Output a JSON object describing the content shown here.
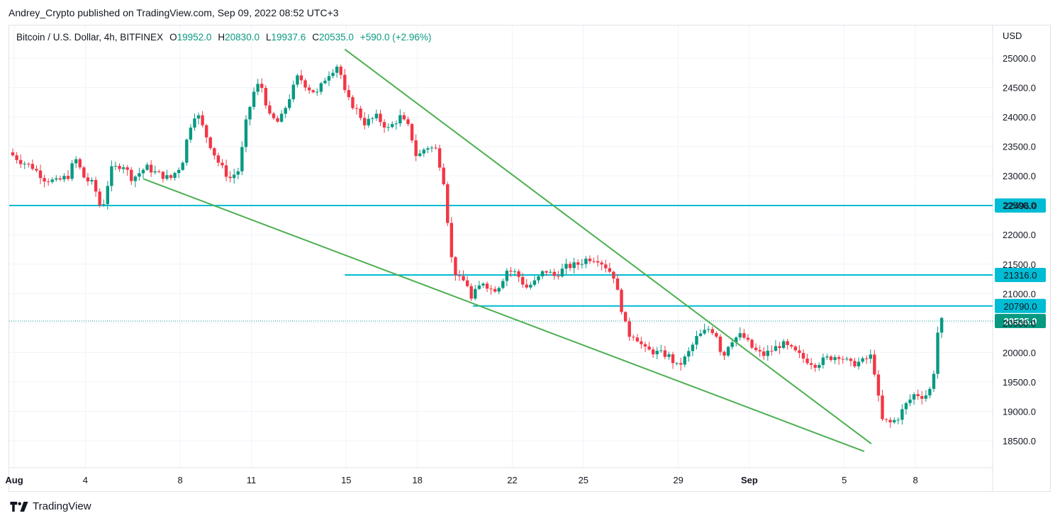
{
  "header": {
    "published": "Andrey_Crypto published on TradingView.com, Sep 09, 2022 08:52 UTC+3"
  },
  "legend": {
    "symbol": "Bitcoin / U.S. Dollar, 4h, BITFINEX",
    "open_label": "O",
    "open": "19952.0",
    "high_label": "H",
    "high": "20830.0",
    "low_label": "L",
    "low": "19937.6",
    "close_label": "C",
    "close": "20535.0",
    "change": "+590.0 (+2.96%)"
  },
  "footer": {
    "brand": "TradingView"
  },
  "colors": {
    "up": "#089981",
    "down": "#f23645",
    "hline": "#00bcd4",
    "trend": "#4caf50",
    "grid": "#f0f3fa",
    "text": "#131722"
  },
  "chart_data": {
    "type": "candlestick",
    "title": "Bitcoin / U.S. Dollar, 4h, BITFINEX",
    "currency": "USD",
    "ylim": [
      18200,
      25400
    ],
    "y_ticks": [
      "18500.0",
      "19000.0",
      "19500.0",
      "20000.0",
      "20500.0",
      "21000.0",
      "21500.0",
      "22000.0",
      "22500.0",
      "23000.0",
      "23500.0",
      "24000.0",
      "24500.0",
      "25000.0"
    ],
    "x_ticks": [
      {
        "label": "Aug",
        "day": 0
      },
      {
        "label": "4",
        "day": 3
      },
      {
        "label": "8",
        "day": 7
      },
      {
        "label": "11",
        "day": 10
      },
      {
        "label": "15",
        "day": 14
      },
      {
        "label": "18",
        "day": 17
      },
      {
        "label": "22",
        "day": 21
      },
      {
        "label": "25",
        "day": 24
      },
      {
        "label": "29",
        "day": 28
      },
      {
        "label": "Sep",
        "day": 31
      },
      {
        "label": "5",
        "day": 35
      },
      {
        "label": "8",
        "day": 38
      }
    ],
    "price_path": [
      [
        0.0,
        23400
      ],
      [
        0.5,
        23250
      ],
      [
        1.0,
        23150
      ],
      [
        1.5,
        22950
      ],
      [
        2.0,
        22900
      ],
      [
        2.5,
        23000
      ],
      [
        2.8,
        23300
      ],
      [
        3.2,
        22950
      ],
      [
        3.6,
        22850
      ],
      [
        3.8,
        22500
      ],
      [
        4.0,
        22550
      ],
      [
        4.3,
        23100
      ],
      [
        4.8,
        23200
      ],
      [
        5.2,
        22950
      ],
      [
        5.8,
        23150
      ],
      [
        6.2,
        23050
      ],
      [
        6.8,
        22950
      ],
      [
        7.3,
        23200
      ],
      [
        7.6,
        23800
      ],
      [
        7.9,
        24100
      ],
      [
        8.3,
        23700
      ],
      [
        8.8,
        23250
      ],
      [
        9.3,
        22950
      ],
      [
        9.7,
        23100
      ],
      [
        10.0,
        23900
      ],
      [
        10.3,
        24400
      ],
      [
        10.6,
        24600
      ],
      [
        11.0,
        24000
      ],
      [
        11.4,
        23900
      ],
      [
        11.8,
        24300
      ],
      [
        12.2,
        24700
      ],
      [
        12.6,
        24500
      ],
      [
        13.0,
        24400
      ],
      [
        13.4,
        24700
      ],
      [
        13.9,
        24900
      ],
      [
        14.2,
        24350
      ],
      [
        14.5,
        24200
      ],
      [
        14.7,
        24100
      ],
      [
        15.0,
        23900
      ],
      [
        15.5,
        24000
      ],
      [
        16.0,
        23800
      ],
      [
        16.5,
        24000
      ],
      [
        16.9,
        23800
      ],
      [
        17.2,
        23300
      ],
      [
        17.6,
        23500
      ],
      [
        18.0,
        23450
      ],
      [
        18.2,
        23150
      ],
      [
        18.4,
        22800
      ],
      [
        18.6,
        21700
      ],
      [
        18.9,
        21250
      ],
      [
        19.3,
        21200
      ],
      [
        19.5,
        20900
      ],
      [
        19.7,
        21050
      ],
      [
        20.0,
        21200
      ],
      [
        20.4,
        21050
      ],
      [
        20.7,
        21150
      ],
      [
        21.0,
        21400
      ],
      [
        21.4,
        21350
      ],
      [
        21.8,
        21100
      ],
      [
        22.2,
        21200
      ],
      [
        22.6,
        21400
      ],
      [
        23.0,
        21300
      ],
      [
        23.5,
        21450
      ],
      [
        24.0,
        21500
      ],
      [
        24.4,
        21600
      ],
      [
        24.8,
        21600
      ],
      [
        25.2,
        21450
      ],
      [
        25.5,
        21300
      ],
      [
        25.8,
        20800
      ],
      [
        26.1,
        20300
      ],
      [
        26.4,
        20300
      ],
      [
        26.8,
        20050
      ],
      [
        27.3,
        20000
      ],
      [
        27.8,
        19950
      ],
      [
        28.2,
        19750
      ],
      [
        28.6,
        19950
      ],
      [
        29.0,
        20250
      ],
      [
        29.5,
        20400
      ],
      [
        29.8,
        20350
      ],
      [
        30.1,
        19900
      ],
      [
        30.4,
        20200
      ],
      [
        30.9,
        20300
      ],
      [
        31.4,
        20050
      ],
      [
        31.8,
        19950
      ],
      [
        32.2,
        20050
      ],
      [
        32.6,
        20150
      ],
      [
        33.0,
        20050
      ],
      [
        33.5,
        19900
      ],
      [
        34.0,
        19800
      ],
      [
        34.5,
        19900
      ],
      [
        35.0,
        19950
      ],
      [
        35.5,
        19800
      ],
      [
        36.0,
        19850
      ],
      [
        36.4,
        19950
      ],
      [
        36.6,
        19400
      ],
      [
        36.8,
        18850
      ],
      [
        37.2,
        18800
      ],
      [
        37.5,
        18900
      ],
      [
        37.8,
        19100
      ],
      [
        38.2,
        19300
      ],
      [
        38.6,
        19250
      ],
      [
        38.9,
        19400
      ],
      [
        39.1,
        19952
      ],
      [
        39.2,
        20535
      ]
    ],
    "horizontal_levels": [
      {
        "label": "22496.0",
        "price": 22496.0,
        "start_day": -0.5
      },
      {
        "label": "21316.0",
        "price": 21316.0,
        "start_day": 14.0
      },
      {
        "label": "20790.0",
        "price": 20790.0,
        "start_day": 19.4
      }
    ],
    "current_price": {
      "label": "20535.0",
      "price": 20535.0
    },
    "trendlines": [
      {
        "name": "upper",
        "from": [
          14.0,
          25150
        ],
        "to": [
          36.2,
          18450
        ]
      },
      {
        "name": "lower",
        "from": [
          5.5,
          22950
        ],
        "to": [
          35.9,
          18320
        ]
      }
    ]
  }
}
